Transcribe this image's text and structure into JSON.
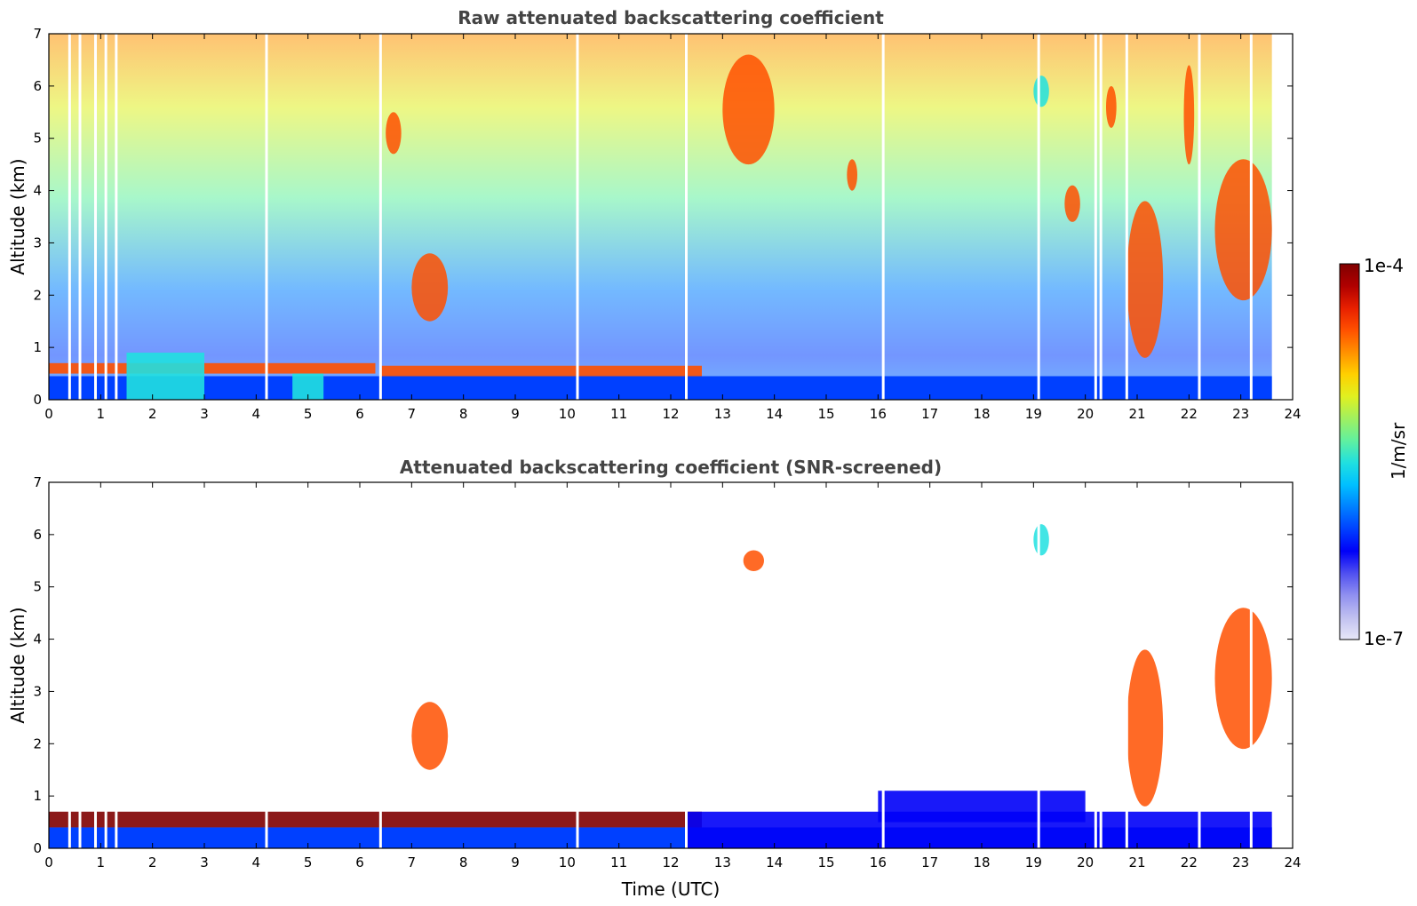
{
  "figure": {
    "colorbar": {
      "max_label": "1e-4",
      "min_label": "1e-7",
      "unit_label": "1/m/sr",
      "colors": [
        "#e8e8f8",
        "#c0c0f0",
        "#9090f0",
        "#5050f0",
        "#0000f8",
        "#0040ff",
        "#0080ff",
        "#00c0ff",
        "#20e0e0",
        "#60f0a0",
        "#a0f060",
        "#e0f020",
        "#ffd000",
        "#ff9000",
        "#ff5000",
        "#e82000",
        "#b00000",
        "#800000"
      ]
    }
  },
  "chart_data": [
    {
      "type": "heatmap",
      "title": "Raw attenuated backscattering coefficient",
      "xlabel": "",
      "ylabel": "Altitude (km)",
      "xlim": [
        0,
        24
      ],
      "ylim": [
        0,
        7
      ],
      "xticks": [
        0,
        1,
        2,
        3,
        4,
        5,
        6,
        7,
        8,
        9,
        10,
        11,
        12,
        13,
        14,
        15,
        16,
        17,
        18,
        19,
        20,
        21,
        22,
        23,
        24
      ],
      "yticks": [
        0,
        1,
        2,
        3,
        4,
        5,
        6,
        7
      ],
      "gaps_utc": [
        0.4,
        0.6,
        0.9,
        1.1,
        1.3,
        4.2,
        6.4,
        10.2,
        12.3,
        16.1,
        19.1,
        20.2,
        20.3,
        20.8,
        22.2,
        23.2
      ],
      "data_end_utc": 23.6,
      "features": [
        {
          "name": "boundary layer top",
          "t": [
            0,
            6.3
          ],
          "alt_km": [
            0.5,
            0.7
          ],
          "level": "high"
        },
        {
          "name": "boundary layer top",
          "t": [
            6.4,
            12.6
          ],
          "alt_km": [
            0.45,
            0.65
          ],
          "level": "high"
        },
        {
          "name": "aerosol",
          "t": [
            1.5,
            3.0
          ],
          "alt_km": [
            0,
            0.9
          ],
          "level": "medium"
        },
        {
          "name": "aerosol",
          "t": [
            4.7,
            5.3
          ],
          "alt_km": [
            0,
            0.5
          ],
          "level": "medium"
        },
        {
          "name": "cloud",
          "t": [
            7.0,
            7.7
          ],
          "alt_km": [
            1.5,
            2.8
          ],
          "level": "high"
        },
        {
          "name": "cloud",
          "t": [
            6.5,
            6.8
          ],
          "alt_km": [
            4.7,
            5.5
          ],
          "level": "high"
        },
        {
          "name": "cloud",
          "t": [
            13.0,
            14.0
          ],
          "alt_km": [
            4.5,
            6.6
          ],
          "level": "high"
        },
        {
          "name": "cloud",
          "t": [
            15.4,
            15.6
          ],
          "alt_km": [
            4.0,
            4.6
          ],
          "level": "high"
        },
        {
          "name": "cloud",
          "t": [
            19.0,
            19.3
          ],
          "alt_km": [
            5.6,
            6.2
          ],
          "level": "medium"
        },
        {
          "name": "cloud",
          "t": [
            19.6,
            19.9
          ],
          "alt_km": [
            3.4,
            4.1
          ],
          "level": "high"
        },
        {
          "name": "cloud",
          "t": [
            20.4,
            20.6
          ],
          "alt_km": [
            5.2,
            6.0
          ],
          "level": "high"
        },
        {
          "name": "cloud",
          "t": [
            20.8,
            21.5
          ],
          "alt_km": [
            0.8,
            3.8
          ],
          "level": "high"
        },
        {
          "name": "cloud",
          "t": [
            21.9,
            22.1
          ],
          "alt_km": [
            4.5,
            6.4
          ],
          "level": "high"
        },
        {
          "name": "cloud",
          "t": [
            22.5,
            23.6
          ],
          "alt_km": [
            1.9,
            4.6
          ],
          "level": "high"
        }
      ]
    },
    {
      "type": "heatmap",
      "title": "Attenuated backscattering coefficient (SNR-screened)",
      "xlabel": "Time (UTC)",
      "ylabel": "Altitude (km)",
      "xlim": [
        0,
        24
      ],
      "ylim": [
        0,
        7
      ],
      "xticks": [
        0,
        1,
        2,
        3,
        4,
        5,
        6,
        7,
        8,
        9,
        10,
        11,
        12,
        13,
        14,
        15,
        16,
        17,
        18,
        19,
        20,
        21,
        22,
        23,
        24
      ],
      "yticks": [
        0,
        1,
        2,
        3,
        4,
        5,
        6,
        7
      ],
      "gaps_utc": [
        0.4,
        0.6,
        0.9,
        1.1,
        1.3,
        4.2,
        6.4,
        10.2,
        12.3,
        16.1,
        19.1,
        20.2,
        20.3,
        20.8,
        22.2,
        23.2
      ],
      "data_end_utc": 23.6,
      "features": [
        {
          "name": "boundary layer top",
          "t": [
            0,
            12.6
          ],
          "alt_km": [
            0.4,
            0.7
          ],
          "level": "very high"
        },
        {
          "name": "low-level aerosol",
          "t": [
            12.3,
            23.6
          ],
          "alt_km": [
            0,
            0.7
          ],
          "level": "low"
        },
        {
          "name": "residual layer",
          "t": [
            16.0,
            20.0
          ],
          "alt_km": [
            0.5,
            1.1
          ],
          "level": "low"
        },
        {
          "name": "cloud",
          "t": [
            7.0,
            7.7
          ],
          "alt_km": [
            1.5,
            2.8
          ],
          "level": "high"
        },
        {
          "name": "cloud",
          "t": [
            13.4,
            13.8
          ],
          "alt_km": [
            5.3,
            5.7
          ],
          "level": "high"
        },
        {
          "name": "cloud",
          "t": [
            19.0,
            19.3
          ],
          "alt_km": [
            5.6,
            6.2
          ],
          "level": "medium"
        },
        {
          "name": "cloud",
          "t": [
            20.8,
            21.5
          ],
          "alt_km": [
            0.8,
            3.8
          ],
          "level": "high"
        },
        {
          "name": "cloud",
          "t": [
            22.5,
            23.6
          ],
          "alt_km": [
            1.9,
            4.6
          ],
          "level": "high"
        }
      ]
    }
  ]
}
